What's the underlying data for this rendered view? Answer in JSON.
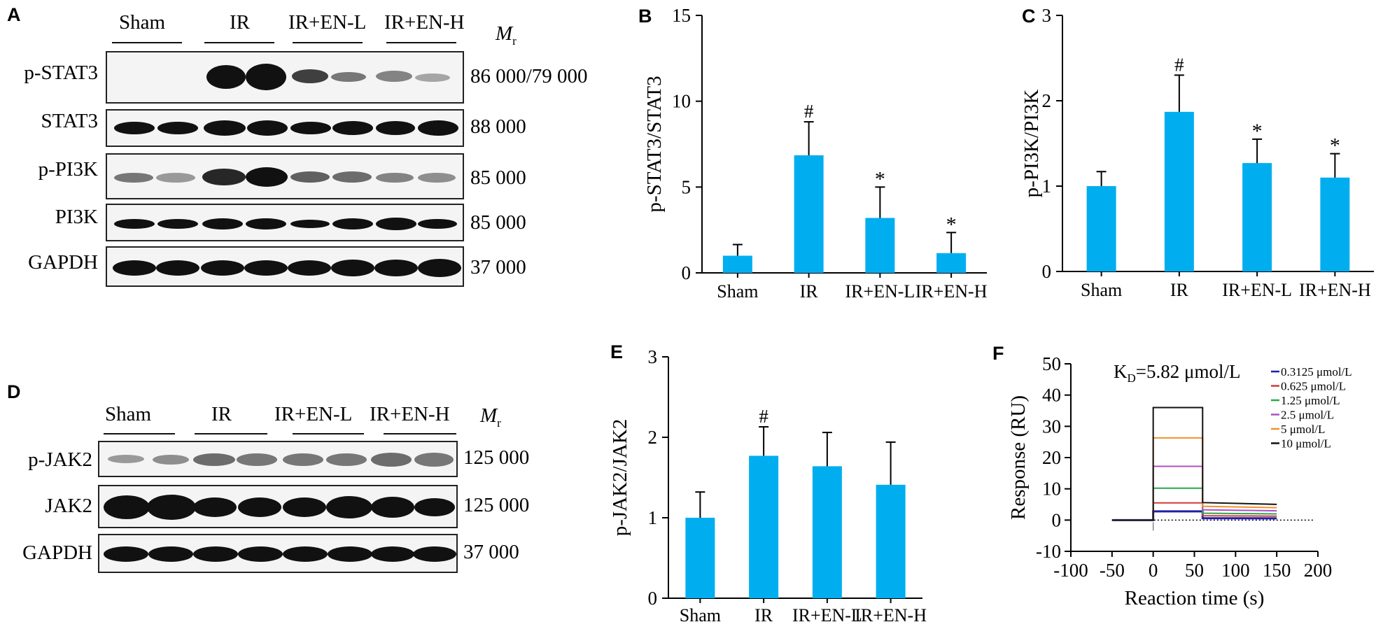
{
  "panel_letters": [
    "A",
    "B",
    "C",
    "D",
    "E",
    "F"
  ],
  "blot_A": {
    "groups": [
      "Sham",
      "IR",
      "IR+EN-L",
      "IR+EN-H"
    ],
    "mr_header": "M",
    "mr_sub": "r",
    "rows": [
      {
        "label": "p-STAT3",
        "mr": "86 000/79 000"
      },
      {
        "label": "STAT3",
        "mr": "88 000"
      },
      {
        "label": "p-PI3K",
        "mr": "85 000"
      },
      {
        "label": "PI3K",
        "mr": "85 000"
      },
      {
        "label": "GAPDH",
        "mr": "37 000"
      }
    ]
  },
  "blot_D": {
    "groups": [
      "Sham",
      "IR",
      "IR+EN-L",
      "IR+EN-H"
    ],
    "mr_header": "M",
    "mr_sub": "r",
    "rows": [
      {
        "label": "p-JAK2",
        "mr": "125 000"
      },
      {
        "label": "JAK2",
        "mr": "125 000"
      },
      {
        "label": "GAPDH",
        "mr": "37 000"
      }
    ]
  },
  "colors": {
    "bar": "#00AEEF"
  },
  "chart_data": [
    {
      "id": "B",
      "type": "bar",
      "categories": [
        "Sham",
        "IR",
        "IR+EN-L",
        "IR+EN-H"
      ],
      "values": [
        1.0,
        6.85,
        3.2,
        1.15
      ],
      "errors": [
        0.65,
        1.95,
        1.8,
        1.2
      ],
      "annotations": [
        "",
        "#",
        "*",
        "*"
      ],
      "ylabel": "p-STAT3/STAT3",
      "ylim": [
        0,
        15
      ],
      "yticks": [
        0,
        5,
        10,
        15
      ]
    },
    {
      "id": "C",
      "type": "bar",
      "categories": [
        "Sham",
        "IR",
        "IR+EN-L",
        "IR+EN-H"
      ],
      "values": [
        1.0,
        1.87,
        1.27,
        1.1
      ],
      "errors": [
        0.17,
        0.43,
        0.28,
        0.28
      ],
      "annotations": [
        "",
        "#",
        "*",
        "*"
      ],
      "ylabel": "p-PI3K/PI3K",
      "ylim": [
        0,
        3
      ],
      "yticks": [
        0,
        1,
        2,
        3
      ]
    },
    {
      "id": "E",
      "type": "bar",
      "categories": [
        "Sham",
        "IR",
        "IR+EN-L",
        "IR+EN-H"
      ],
      "values": [
        1.0,
        1.77,
        1.64,
        1.41
      ],
      "errors": [
        0.32,
        0.36,
        0.42,
        0.53
      ],
      "annotations": [
        "",
        "#",
        "",
        ""
      ],
      "ylabel": "p-JAK2/JAK2",
      "ylim": [
        0,
        3
      ],
      "yticks": [
        0,
        1,
        2,
        3
      ]
    },
    {
      "id": "F",
      "type": "line",
      "xlabel": "Reaction time (s)",
      "ylabel": "Response (RU)",
      "xlim": [
        -100,
        200
      ],
      "ylim": [
        -10,
        50
      ],
      "xticks": [
        -100,
        -50,
        0,
        50,
        100,
        150,
        200
      ],
      "yticks": [
        -10,
        0,
        10,
        20,
        30,
        40,
        50
      ],
      "kd_main": "K",
      "kd_sub": "D",
      "kd_rest": "=5.82 μmol/L",
      "baseline_dotted": true,
      "series": [
        {
          "name": "0.3125 μmol/L",
          "color": "#1f1fa8",
          "plateau": 2.8,
          "dissoc": 0.6
        },
        {
          "name": "0.625 μmol/L",
          "color": "#d23b3b",
          "plateau": 5.5,
          "dissoc": 1.4
        },
        {
          "name": "1.25 μmol/L",
          "color": "#2aa84a",
          "plateau": 10.2,
          "dissoc": 2.2
        },
        {
          "name": "2.5 μmol/L",
          "color": "#b04fc4",
          "plateau": 17.2,
          "dissoc": 3.3
        },
        {
          "name": "5 μmol/L",
          "color": "#f0932b",
          "plateau": 26.3,
          "dissoc": 4.4
        },
        {
          "name": "10 μmol/L",
          "color": "#111111",
          "plateau": 36.0,
          "dissoc": 5.6
        }
      ]
    }
  ]
}
